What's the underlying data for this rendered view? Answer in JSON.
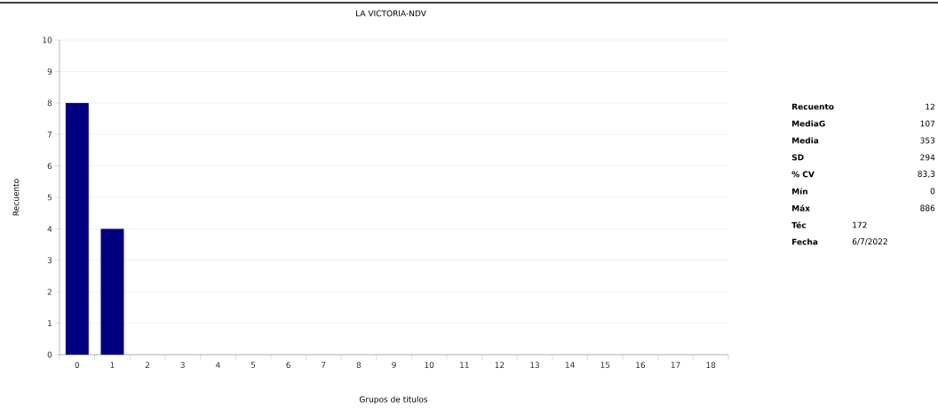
{
  "chart_data": {
    "type": "bar",
    "title": "LA VICTORIA-NDV",
    "xlabel": "Grupos de titulos",
    "ylabel": "Recuento",
    "categories": [
      "0",
      "1",
      "2",
      "3",
      "4",
      "5",
      "6",
      "7",
      "8",
      "9",
      "10",
      "11",
      "12",
      "13",
      "14",
      "15",
      "16",
      "17",
      "18"
    ],
    "values": [
      8,
      4,
      0,
      0,
      0,
      0,
      0,
      0,
      0,
      0,
      0,
      0,
      0,
      0,
      0,
      0,
      0,
      0,
      0
    ],
    "color": "#000080",
    "ylim": [
      0,
      10
    ],
    "yticks": [
      0,
      1,
      2,
      3,
      4,
      5,
      6,
      7,
      8,
      9,
      10
    ],
    "grid": "y",
    "annotations": [
      "Recuento",
      "12",
      "MediaG",
      "107",
      "Media",
      "353",
      "SD",
      "294",
      "% CV",
      "83,3",
      "Mín",
      "0",
      "Máx",
      "886",
      "Téc",
      "172",
      "Fecha",
      "6/7/2022"
    ]
  }
}
